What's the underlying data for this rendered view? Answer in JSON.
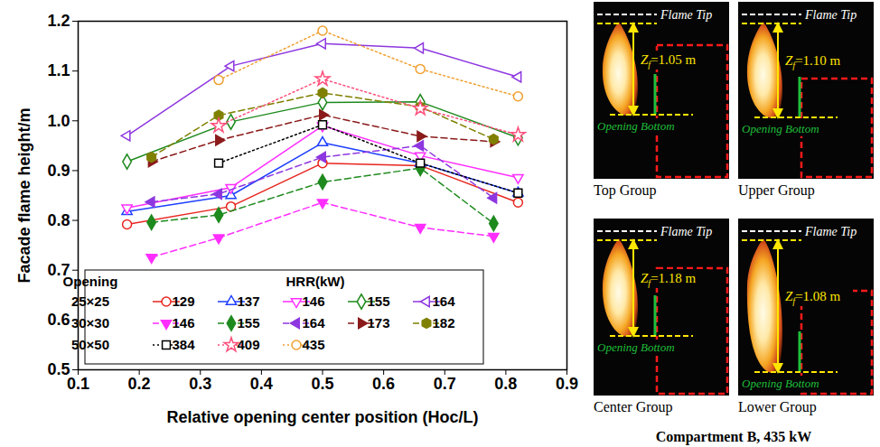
{
  "chart_data": {
    "type": "line",
    "x_label": "Relative opening center position (Hoc/L)",
    "y_label": "Facade flame height/m",
    "xlim": [
      0.1,
      0.9
    ],
    "xticks": [
      0.1,
      0.2,
      0.3,
      0.4,
      0.5,
      0.6,
      0.7,
      0.8,
      0.9
    ],
    "ylim": [
      0.5,
      1.2
    ],
    "yticks": [
      0.5,
      0.6,
      0.7,
      0.8,
      0.9,
      {
        "value": 1,
        "label": "1.0"
      },
      1.1,
      1.2
    ],
    "grid": false,
    "legend": "lower left",
    "legend_headers": [
      "Opening",
      "HRR(kW)"
    ],
    "series": [
      {
        "name": "129",
        "group": "25×25",
        "color": "#e8251e",
        "marker": "circle-open",
        "line_style": "solid",
        "x": [
          0.18,
          0.35,
          0.5,
          0.66,
          0.82
        ],
        "values": [
          0.792,
          0.828,
          0.915,
          0.91,
          0.836
        ]
      },
      {
        "name": "137",
        "group": "25×25",
        "color": "#1f3fff",
        "marker": "triangle-open",
        "line_style": "solid",
        "x": [
          0.18,
          0.35,
          0.5,
          0.66,
          0.82
        ],
        "values": [
          0.818,
          0.85,
          0.956,
          0.915,
          0.855
        ]
      },
      {
        "name": "146",
        "group": "25×25",
        "color": "#ff2eff",
        "marker": "triangle_down-open",
        "line_style": "solid",
        "x": [
          0.18,
          0.35,
          0.5,
          0.66,
          0.82
        ],
        "values": [
          0.825,
          0.866,
          0.99,
          0.93,
          0.886
        ]
      },
      {
        "name": "155",
        "group": "25×25",
        "color": "#1e8a1e",
        "marker": "diamond-open",
        "line_style": "solid",
        "x": [
          0.18,
          0.35,
          0.5,
          0.66,
          0.82
        ],
        "values": [
          0.918,
          0.998,
          1.037,
          1.038,
          0.966
        ]
      },
      {
        "name": "164",
        "group": "25×25",
        "color": "#8e37e0",
        "marker": "triangle_left-open",
        "line_style": "solid",
        "x": [
          0.18,
          0.35,
          0.5,
          0.66,
          0.82
        ],
        "values": [
          0.97,
          1.11,
          1.155,
          1.146,
          1.088
        ]
      },
      {
        "name": "146",
        "group": "30×30",
        "color": "#ff2eff",
        "marker": "triangle_down-filled",
        "line_style": "dashed",
        "x": [
          0.22,
          0.33,
          0.5,
          0.66,
          0.78
        ],
        "values": [
          0.726,
          0.765,
          0.836,
          0.786,
          0.768
        ]
      },
      {
        "name": "155",
        "group": "30×30",
        "color": "#1e8a1e",
        "marker": "diamond-filled",
        "line_style": "dashed",
        "x": [
          0.22,
          0.33,
          0.5,
          0.66,
          0.78
        ],
        "values": [
          0.796,
          0.811,
          0.877,
          0.905,
          0.794
        ]
      },
      {
        "name": "164",
        "group": "30×30",
        "color": "#8e37e0",
        "marker": "triangle_left-filled",
        "line_style": "dashed",
        "x": [
          0.22,
          0.33,
          0.5,
          0.66,
          0.78
        ],
        "values": [
          0.837,
          0.853,
          0.927,
          0.95,
          0.845
        ]
      },
      {
        "name": "173",
        "group": "30×30",
        "color": "#8b1a1a",
        "marker": "triangle_right-filled",
        "line_style": "dashed",
        "x": [
          0.22,
          0.33,
          0.5,
          0.66,
          0.78
        ],
        "values": [
          0.918,
          0.961,
          1.012,
          0.969,
          0.958
        ]
      },
      {
        "name": "182",
        "group": "30×30",
        "color": "#808000",
        "marker": "hexagon-filled",
        "line_style": "dashed",
        "x": [
          0.22,
          0.33,
          0.5,
          0.66,
          0.78
        ],
        "values": [
          0.927,
          1.011,
          1.056,
          1.028,
          0.963
        ]
      },
      {
        "name": "384",
        "group": "50×50",
        "color": "#000000",
        "marker": "square-open",
        "line_style": "dotted",
        "x": [
          0.33,
          0.5,
          0.66,
          0.82
        ],
        "values": [
          0.915,
          0.992,
          0.915,
          0.855
        ]
      },
      {
        "name": "409",
        "group": "50×50",
        "color": "#ff4f7b",
        "marker": "star-open",
        "line_style": "dotted",
        "x": [
          0.33,
          0.5,
          0.66,
          0.82
        ],
        "values": [
          0.99,
          1.084,
          1.025,
          0.972
        ]
      },
      {
        "name": "435",
        "group": "50×50",
        "color": "#f0a030",
        "marker": "circle-open",
        "line_style": "dotted",
        "x": [
          0.33,
          0.5,
          0.66,
          0.82
        ],
        "values": [
          1.082,
          1.181,
          1.104,
          1.049
        ]
      }
    ]
  },
  "photo_panels": {
    "flame_tip": "Flame Tip",
    "opening_bottom": "Opening Bottom",
    "caption": "Compartment B, 435 kW",
    "panels": [
      {
        "group": "Top Group",
        "zf_text": [
          "Z",
          "f",
          "=1.05 m"
        ]
      },
      {
        "group": "Upper Group",
        "zf_text": [
          "Z",
          "f",
          "=1.10 m"
        ]
      },
      {
        "group": "Center Group",
        "zf_text": [
          "Z",
          "f",
          "=1.18 m"
        ]
      },
      {
        "group": "Lower Group",
        "zf_text": [
          "Z",
          "f",
          "=1.08 m"
        ]
      }
    ]
  }
}
